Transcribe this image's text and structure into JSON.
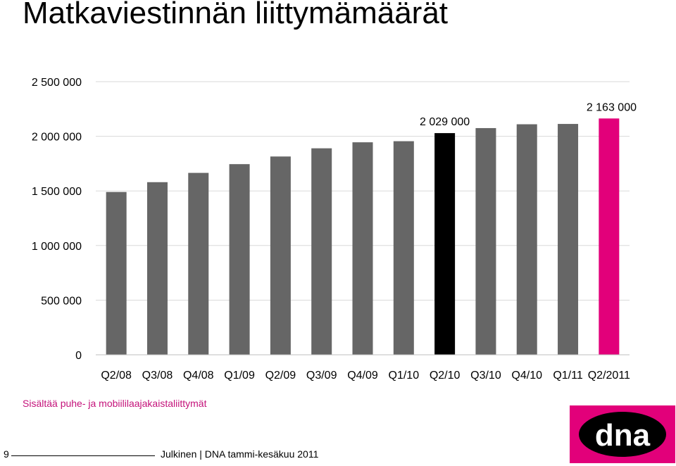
{
  "page": {
    "title": "Matkaviestinnän liittymämäärät",
    "note": "Sisältää puhe- ja mobiililaajakaistaliittymät",
    "page_number": "9",
    "footer_text": "Julkinen | DNA tammi-kesäkuu 2011",
    "logo_text": "dna"
  },
  "colors": {
    "default_bar": "#666666",
    "highlight_q2_10": "#000000",
    "highlight_q2_2011": "#e2007a",
    "note_text": "#c4127a",
    "gridline": "#d9d9d9",
    "logo_bg": "#e2007a"
  },
  "chart_data": {
    "type": "bar",
    "categories": [
      "Q2/08",
      "Q3/08",
      "Q4/08",
      "Q1/09",
      "Q2/09",
      "Q3/09",
      "Q4/09",
      "Q1/10",
      "Q2/10",
      "Q3/10",
      "Q4/10",
      "Q1/11",
      "Q2/2011"
    ],
    "values": [
      1490000,
      1580000,
      1665000,
      1745000,
      1815000,
      1890000,
      1945000,
      1955000,
      2029000,
      2075000,
      2110000,
      2113000,
      2163000
    ],
    "bar_colors": [
      "#666666",
      "#666666",
      "#666666",
      "#666666",
      "#666666",
      "#666666",
      "#666666",
      "#666666",
      "#000000",
      "#666666",
      "#666666",
      "#666666",
      "#e2007a"
    ],
    "data_labels": [
      {
        "index": 8,
        "text": "2 029 000"
      },
      {
        "index": 12,
        "text": "2 163 000"
      }
    ],
    "y_ticks": [
      {
        "value": 0,
        "label": "0"
      },
      {
        "value": 500000,
        "label": "500 000"
      },
      {
        "value": 1000000,
        "label": "1 000 000"
      },
      {
        "value": 1500000,
        "label": "1 500 000"
      },
      {
        "value": 2000000,
        "label": "2 000 000"
      },
      {
        "value": 2500000,
        "label": "2 500 000"
      }
    ],
    "ylim": [
      0,
      2500000
    ],
    "grid": true,
    "legend": "none"
  }
}
